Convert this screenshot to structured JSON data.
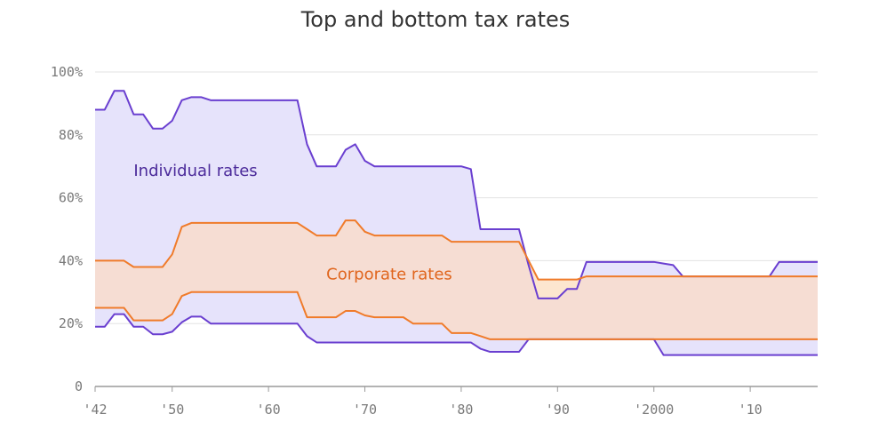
{
  "chart_data": {
    "type": "area",
    "title": "Top and bottom tax rates",
    "xlabel": "",
    "ylabel": "",
    "xlim": [
      1942,
      2017
    ],
    "ylim": [
      0,
      100
    ],
    "x_ticks": [
      {
        "value": 1942,
        "label": "'42"
      },
      {
        "value": 1950,
        "label": "'50"
      },
      {
        "value": 1960,
        "label": "'60"
      },
      {
        "value": 1970,
        "label": "'70"
      },
      {
        "value": 1980,
        "label": "'80"
      },
      {
        "value": 1990,
        "label": "'90"
      },
      {
        "value": 2000,
        "label": "'2000"
      },
      {
        "value": 2010,
        "label": "'10"
      }
    ],
    "y_ticks": [
      {
        "value": 0,
        "label": "0"
      },
      {
        "value": 20,
        "label": "20%"
      },
      {
        "value": 40,
        "label": "40%"
      },
      {
        "value": 60,
        "label": "60%"
      },
      {
        "value": 80,
        "label": "80%"
      },
      {
        "value": 100,
        "label": "100%"
      }
    ],
    "grid": true,
    "annotations": [
      {
        "text": "Individual rates",
        "x": 1946,
        "y": 67,
        "color": "#4b2a9a"
      },
      {
        "text": "Corporate rates",
        "x": 1966,
        "y": 34,
        "color": "#e0661e"
      }
    ],
    "series": [
      {
        "role": "individual-top",
        "color": "#6a3fd0",
        "points": [
          [
            1942,
            88
          ],
          [
            1943,
            88
          ],
          [
            1944,
            94
          ],
          [
            1945,
            94
          ],
          [
            1946,
            86.5
          ],
          [
            1947,
            86.5
          ],
          [
            1948,
            82
          ],
          [
            1949,
            82
          ],
          [
            1950,
            84.5
          ],
          [
            1951,
            91
          ],
          [
            1952,
            92
          ],
          [
            1953,
            92
          ],
          [
            1954,
            91
          ],
          [
            1963,
            91
          ],
          [
            1964,
            77
          ],
          [
            1965,
            70
          ],
          [
            1966,
            70
          ],
          [
            1967,
            70
          ],
          [
            1968,
            75.25
          ],
          [
            1969,
            77
          ],
          [
            1970,
            71.75
          ],
          [
            1971,
            70
          ],
          [
            1980,
            70
          ],
          [
            1981,
            69.13
          ],
          [
            1982,
            50
          ],
          [
            1986,
            50
          ],
          [
            1987,
            38.5
          ],
          [
            1988,
            28
          ],
          [
            1990,
            28
          ],
          [
            1991,
            31
          ],
          [
            1992,
            31
          ],
          [
            1993,
            39.6
          ],
          [
            2000,
            39.6
          ],
          [
            2001,
            39.1
          ],
          [
            2002,
            38.6
          ],
          [
            2003,
            35
          ],
          [
            2012,
            35
          ],
          [
            2013,
            39.6
          ],
          [
            2017,
            39.6
          ]
        ]
      },
      {
        "role": "individual-bottom",
        "color": "#6a3fd0",
        "points": [
          [
            1942,
            19
          ],
          [
            1943,
            19
          ],
          [
            1944,
            23
          ],
          [
            1945,
            23
          ],
          [
            1946,
            19
          ],
          [
            1947,
            19
          ],
          [
            1948,
            16.6
          ],
          [
            1949,
            16.6
          ],
          [
            1950,
            17.4
          ],
          [
            1951,
            20.4
          ],
          [
            1952,
            22.2
          ],
          [
            1953,
            22.2
          ],
          [
            1954,
            20
          ],
          [
            1963,
            20
          ],
          [
            1964,
            16
          ],
          [
            1965,
            14
          ],
          [
            1981,
            14
          ],
          [
            1982,
            12
          ],
          [
            1983,
            11
          ],
          [
            1986,
            11
          ],
          [
            1987,
            15
          ],
          [
            2000,
            15
          ],
          [
            2001,
            10
          ],
          [
            2017,
            10
          ]
        ]
      },
      {
        "role": "corporate-top",
        "color": "#f07b2a",
        "points": [
          [
            1942,
            40
          ],
          [
            1945,
            40
          ],
          [
            1946,
            38
          ],
          [
            1949,
            38
          ],
          [
            1950,
            42
          ],
          [
            1951,
            50.75
          ],
          [
            1952,
            52
          ],
          [
            1963,
            52
          ],
          [
            1964,
            50
          ],
          [
            1965,
            48
          ],
          [
            1967,
            48
          ],
          [
            1968,
            52.8
          ],
          [
            1969,
            52.8
          ],
          [
            1970,
            49.2
          ],
          [
            1971,
            48
          ],
          [
            1978,
            48
          ],
          [
            1979,
            46
          ],
          [
            1986,
            46
          ],
          [
            1987,
            40
          ],
          [
            1988,
            34
          ],
          [
            1992,
            34
          ],
          [
            1993,
            35
          ],
          [
            2017,
            35
          ]
        ]
      },
      {
        "role": "corporate-bottom",
        "color": "#f07b2a",
        "points": [
          [
            1942,
            25
          ],
          [
            1945,
            25
          ],
          [
            1946,
            21
          ],
          [
            1949,
            21
          ],
          [
            1950,
            23
          ],
          [
            1951,
            28.75
          ],
          [
            1952,
            30
          ],
          [
            1963,
            30
          ],
          [
            1964,
            22
          ],
          [
            1967,
            22
          ],
          [
            1968,
            24
          ],
          [
            1969,
            24
          ],
          [
            1970,
            22.6
          ],
          [
            1971,
            22
          ],
          [
            1974,
            22
          ],
          [
            1975,
            20
          ],
          [
            1978,
            20
          ],
          [
            1979,
            17
          ],
          [
            1981,
            17
          ],
          [
            1982,
            16
          ],
          [
            1983,
            15
          ],
          [
            2017,
            15
          ]
        ]
      }
    ]
  }
}
